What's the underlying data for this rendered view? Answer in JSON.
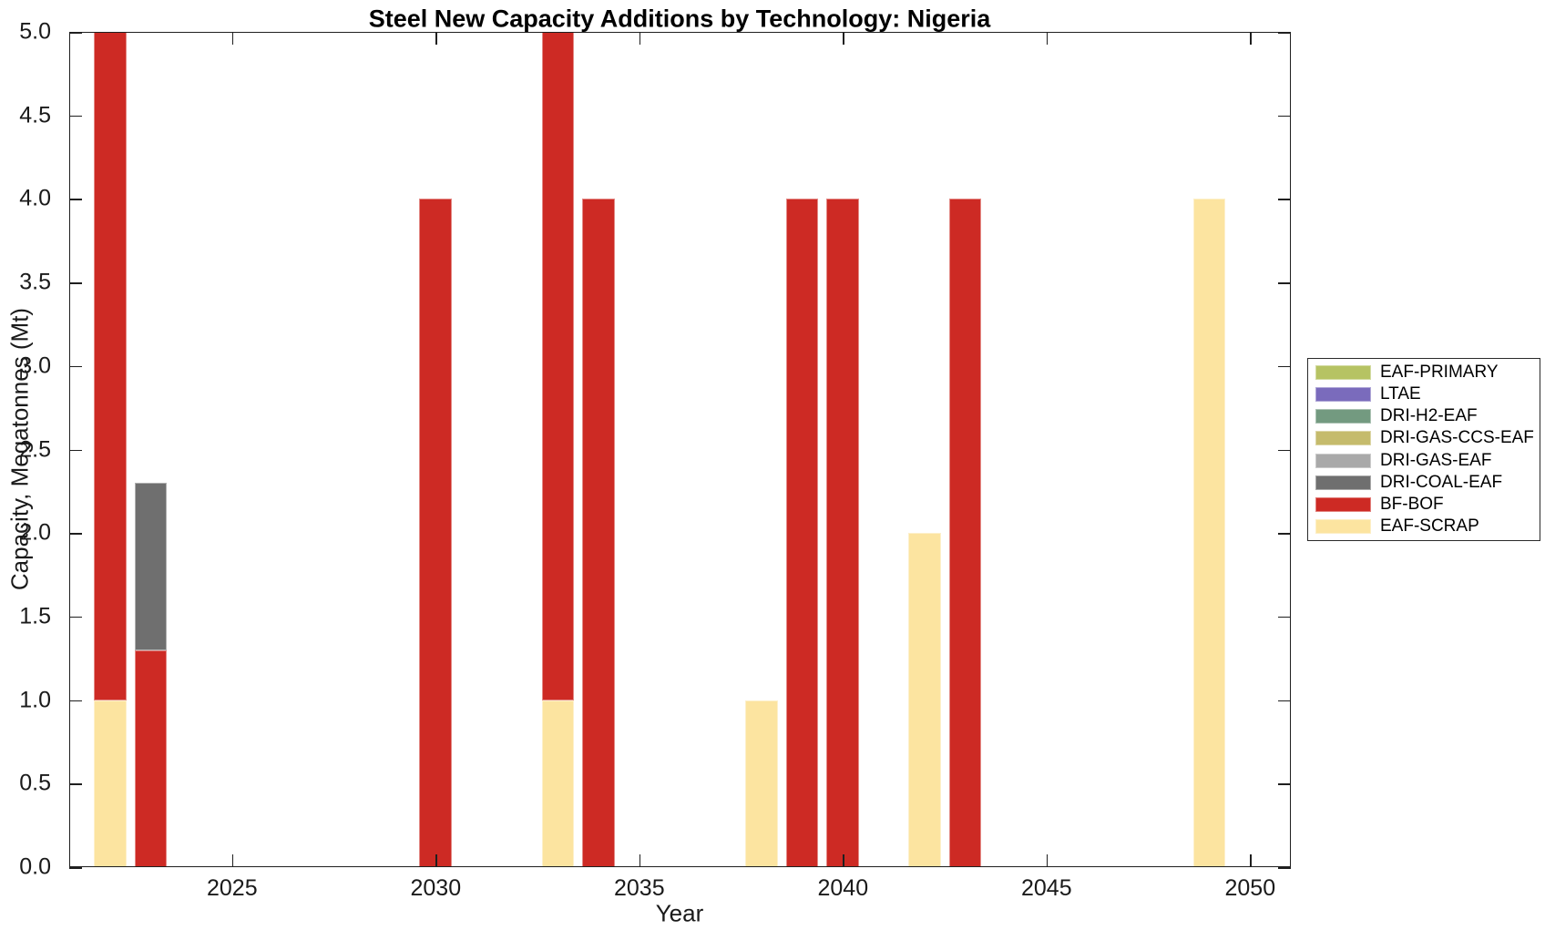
{
  "figure": {
    "title": "Steel New Capacity Additions by Technology: Nigeria",
    "xlabel": "Year",
    "ylabel": "Capacity, Megatonnes (Mt)"
  },
  "chart_data": {
    "type": "bar",
    "stacked": true,
    "title": "Steel New Capacity Additions by Technology: Nigeria",
    "xlabel": "Year",
    "ylabel": "Capacity, Megatonnes (Mt)",
    "xlim": [
      2021,
      2051
    ],
    "ylim": [
      0,
      5
    ],
    "xticks": [
      2025,
      2030,
      2035,
      2040,
      2045,
      2050
    ],
    "yticks": [
      0.0,
      0.5,
      1.0,
      1.5,
      2.0,
      2.5,
      3.0,
      3.5,
      4.0,
      4.5,
      5.0
    ],
    "ytick_decimals": 1,
    "grid": false,
    "bar_width_years": 0.8,
    "legend_position": "right-outside",
    "legend": [
      {
        "label": "EAF-PRIMARY",
        "color": "#b6c363"
      },
      {
        "label": "LTAE",
        "color": "#7a6bbc"
      },
      {
        "label": "DRI-H2-EAF",
        "color": "#739a80"
      },
      {
        "label": "DRI-GAS-CCS-EAF",
        "color": "#c5bb6c"
      },
      {
        "label": "DRI-GAS-EAF",
        "color": "#a9a9a9"
      },
      {
        "label": "DRI-COAL-EAF",
        "color": "#6f6f6f"
      },
      {
        "label": "BF-BOF",
        "color": "#cd2a24"
      },
      {
        "label": "EAF-SCRAP",
        "color": "#fce4a0"
      }
    ],
    "bars": [
      {
        "year": 2022,
        "segments": [
          {
            "tech": "EAF-SCRAP",
            "value": 1.0
          },
          {
            "tech": "BF-BOF",
            "value": 4.0
          }
        ]
      },
      {
        "year": 2023,
        "segments": [
          {
            "tech": "BF-BOF",
            "value": 1.3
          },
          {
            "tech": "DRI-COAL-EAF",
            "value": 1.0
          }
        ]
      },
      {
        "year": 2030,
        "segments": [
          {
            "tech": "BF-BOF",
            "value": 4.0
          }
        ]
      },
      {
        "year": 2033,
        "segments": [
          {
            "tech": "EAF-SCRAP",
            "value": 1.0
          },
          {
            "tech": "BF-BOF",
            "value": 4.0
          }
        ]
      },
      {
        "year": 2034,
        "segments": [
          {
            "tech": "BF-BOF",
            "value": 4.0
          }
        ]
      },
      {
        "year": 2038,
        "segments": [
          {
            "tech": "EAF-SCRAP",
            "value": 1.0
          }
        ]
      },
      {
        "year": 2039,
        "segments": [
          {
            "tech": "BF-BOF",
            "value": 4.0
          }
        ]
      },
      {
        "year": 2040,
        "segments": [
          {
            "tech": "BF-BOF",
            "value": 4.0
          }
        ]
      },
      {
        "year": 2042,
        "segments": [
          {
            "tech": "EAF-SCRAP",
            "value": 2.0
          }
        ]
      },
      {
        "year": 2043,
        "segments": [
          {
            "tech": "BF-BOF",
            "value": 4.0
          }
        ]
      },
      {
        "year": 2049,
        "segments": [
          {
            "tech": "EAF-SCRAP",
            "value": 4.0
          }
        ]
      }
    ]
  }
}
